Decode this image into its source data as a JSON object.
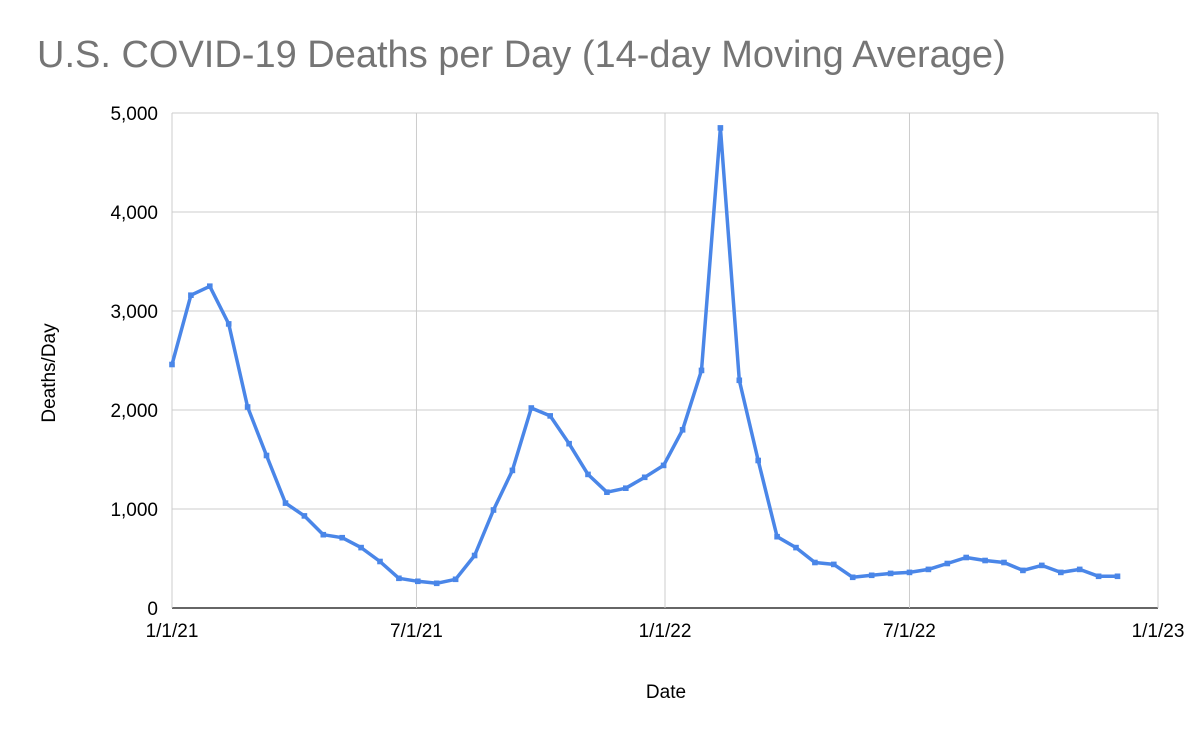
{
  "chart_data": {
    "type": "line",
    "title": "U.S. COVID-19 Deaths per Day (14-day Moving Average)",
    "xlabel": "Date",
    "ylabel": "Deaths/Day",
    "ylim": [
      0,
      5000
    ],
    "xlim": [
      "2021-01-01",
      "2023-01-01"
    ],
    "y_ticks": [
      0,
      1000,
      2000,
      3000,
      4000,
      5000
    ],
    "y_tick_labels": [
      "0",
      "1,000",
      "2,000",
      "3,000",
      "4,000",
      "5,000"
    ],
    "x_ticks": [
      "2021-01-01",
      "2021-07-01",
      "2022-01-01",
      "2022-07-01",
      "2023-01-01"
    ],
    "x_tick_labels": [
      "1/1/21",
      "7/1/21",
      "1/1/22",
      "7/1/22",
      "1/1/23"
    ],
    "grid": true,
    "legend": "none",
    "line_color": "#4a86e8",
    "series": [
      {
        "x": [
          "2021-01-01",
          "2021-01-15",
          "2021-01-29",
          "2021-02-12",
          "2021-02-26",
          "2021-03-12",
          "2021-03-26",
          "2021-04-09",
          "2021-04-23",
          "2021-05-07",
          "2021-05-21",
          "2021-06-04",
          "2021-06-18",
          "2021-07-02",
          "2021-07-16",
          "2021-07-30",
          "2021-08-13",
          "2021-08-27",
          "2021-09-10",
          "2021-09-24",
          "2021-10-08",
          "2021-10-22",
          "2021-11-05",
          "2021-11-19",
          "2021-12-03",
          "2021-12-17",
          "2021-12-31",
          "2022-01-14",
          "2022-01-28",
          "2022-02-11",
          "2022-02-25",
          "2022-03-11",
          "2022-03-25",
          "2022-04-08",
          "2022-04-22",
          "2022-05-06",
          "2022-05-20",
          "2022-06-03",
          "2022-06-17",
          "2022-07-01",
          "2022-07-15",
          "2022-07-29",
          "2022-08-12",
          "2022-08-26",
          "2022-09-09",
          "2022-09-23",
          "2022-10-07",
          "2022-10-21",
          "2022-11-04",
          "2022-11-18",
          "2022-12-02"
        ],
        "values": [
          2460,
          3160,
          3250,
          2870,
          2030,
          1540,
          1060,
          930,
          740,
          710,
          610,
          470,
          300,
          270,
          250,
          290,
          530,
          990,
          1390,
          2020,
          1940,
          1660,
          1350,
          1170,
          1210,
          1320,
          1440,
          1800,
          2400,
          4850,
          2300,
          1490,
          720,
          610,
          460,
          440,
          310,
          330,
          350,
          360,
          390,
          450,
          510,
          480,
          460,
          380,
          430,
          360,
          390,
          320,
          320
        ]
      }
    ]
  }
}
